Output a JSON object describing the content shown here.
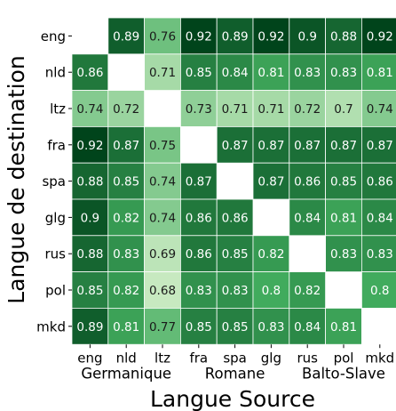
{
  "chart_data": {
    "type": "heatmap",
    "xlabel": "Langue Source",
    "ylabel": "Langue de destination",
    "x_categories": [
      "eng",
      "nld",
      "ltz",
      "fra",
      "spa",
      "glg",
      "rus",
      "pol",
      "mkd"
    ],
    "y_categories": [
      "eng",
      "nld",
      "ltz",
      "fra",
      "spa",
      "glg",
      "rus",
      "pol",
      "mkd"
    ],
    "x_groups": [
      {
        "label": "Germanique",
        "members": [
          "eng",
          "nld",
          "ltz"
        ]
      },
      {
        "label": "Romane",
        "members": [
          "fra",
          "spa",
          "glg"
        ]
      },
      {
        "label": "Balto-Slave",
        "members": [
          "rus",
          "pol",
          "mkd"
        ]
      }
    ],
    "values": [
      [
        null,
        0.89,
        0.76,
        0.92,
        0.89,
        0.92,
        0.9,
        0.88,
        0.92
      ],
      [
        0.86,
        null,
        0.71,
        0.85,
        0.84,
        0.81,
        0.83,
        0.83,
        0.81
      ],
      [
        0.74,
        0.72,
        null,
        0.73,
        0.71,
        0.71,
        0.72,
        0.7,
        0.74
      ],
      [
        0.92,
        0.87,
        0.75,
        null,
        0.87,
        0.87,
        0.87,
        0.87,
        0.87
      ],
      [
        0.88,
        0.85,
        0.74,
        0.87,
        null,
        0.87,
        0.86,
        0.85,
        0.86
      ],
      [
        0.9,
        0.82,
        0.74,
        0.86,
        0.86,
        null,
        0.84,
        0.81,
        0.84
      ],
      [
        0.88,
        0.83,
        0.69,
        0.86,
        0.85,
        0.82,
        null,
        0.83,
        0.83
      ],
      [
        0.85,
        0.82,
        0.68,
        0.83,
        0.83,
        0.8,
        0.82,
        null,
        0.8
      ],
      [
        0.89,
        0.81,
        0.77,
        0.85,
        0.85,
        0.83,
        0.84,
        0.81,
        null
      ]
    ],
    "color_scale": {
      "low": "#c7e9c0",
      "mid": "#41ab5d",
      "high": "#00441b"
    },
    "grid": false
  }
}
